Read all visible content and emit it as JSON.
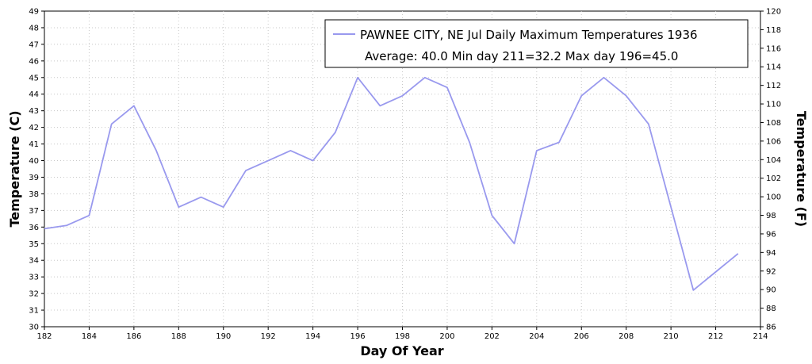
{
  "chart_data": {
    "type": "line",
    "title_line1": "PAWNEE CITY, NE  Jul  Daily Maximum Temperatures 1936",
    "title_line2": "Average: 40.0  Min day 211=32.2  Max day 196=45.0",
    "xlabel": "Day Of Year",
    "ylabel_left": "Temperature (C)",
    "ylabel_right": "Temperature (F)",
    "xlim": [
      182,
      214
    ],
    "ylim": [
      30,
      49
    ],
    "ylim_right": [
      86,
      120
    ],
    "x_ticks": [
      182,
      184,
      186,
      188,
      190,
      192,
      194,
      196,
      198,
      200,
      202,
      204,
      206,
      208,
      210,
      212,
      214
    ],
    "y_ticks": [
      30,
      31,
      32,
      33,
      34,
      35,
      36,
      37,
      38,
      39,
      40,
      41,
      42,
      43,
      44,
      45,
      46,
      47,
      48,
      49
    ],
    "y_right_ticks": [
      86,
      88,
      90,
      92,
      94,
      96,
      98,
      100,
      102,
      104,
      106,
      108,
      110,
      112,
      114,
      116,
      118,
      120
    ],
    "grid": true,
    "legend_position": "top-right",
    "series": [
      {
        "name": "PAWNEE CITY, NE  Jul  Daily Maximum Temperatures 1936",
        "color": "#9999ee",
        "x": [
          182,
          183,
          184,
          185,
          186,
          187,
          188,
          189,
          190,
          191,
          192,
          193,
          194,
          195,
          196,
          197,
          198,
          199,
          200,
          201,
          202,
          203,
          204,
          205,
          206,
          207,
          208,
          209,
          210,
          211,
          212,
          213
        ],
        "values": [
          35.9,
          36.1,
          36.7,
          42.2,
          43.3,
          40.6,
          37.2,
          37.8,
          37.2,
          39.4,
          40.0,
          40.6,
          40.0,
          41.7,
          45.0,
          43.3,
          43.9,
          45.0,
          44.4,
          41.1,
          36.7,
          35.0,
          40.6,
          41.1,
          43.9,
          45.0,
          43.9,
          42.2,
          37.2,
          32.2,
          33.3,
          34.4
        ]
      }
    ]
  }
}
